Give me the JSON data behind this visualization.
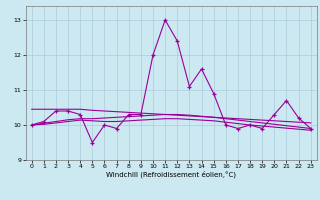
{
  "x": [
    0,
    1,
    2,
    3,
    4,
    5,
    6,
    7,
    8,
    9,
    10,
    11,
    12,
    13,
    14,
    15,
    16,
    17,
    18,
    19,
    20,
    21,
    22,
    23
  ],
  "y_main": [
    10.0,
    10.1,
    10.4,
    10.4,
    10.3,
    9.5,
    10.0,
    9.9,
    10.3,
    10.3,
    12.0,
    13.0,
    12.4,
    11.1,
    11.6,
    10.9,
    10.0,
    9.9,
    10.0,
    9.9,
    10.3,
    10.7,
    10.2,
    9.9
  ],
  "y_line1": [
    10.45,
    10.45,
    10.45,
    10.45,
    10.45,
    10.42,
    10.4,
    10.38,
    10.36,
    10.34,
    10.32,
    10.3,
    10.28,
    10.26,
    10.24,
    10.22,
    10.2,
    10.18,
    10.16,
    10.14,
    10.12,
    10.1,
    10.08,
    10.06
  ],
  "y_line2": [
    10.0,
    10.05,
    10.1,
    10.15,
    10.18,
    10.18,
    10.2,
    10.22,
    10.24,
    10.26,
    10.28,
    10.3,
    10.3,
    10.28,
    10.25,
    10.22,
    10.18,
    10.14,
    10.1,
    10.06,
    10.02,
    9.98,
    9.94,
    9.9
  ],
  "y_line3": [
    10.0,
    10.02,
    10.06,
    10.1,
    10.14,
    10.12,
    10.1,
    10.1,
    10.12,
    10.14,
    10.16,
    10.18,
    10.18,
    10.16,
    10.14,
    10.12,
    10.08,
    10.04,
    10.0,
    9.97,
    9.94,
    9.91,
    9.88,
    9.85
  ],
  "line_color": "#990099",
  "bg_color": "#cce8f0",
  "grid_color": "#aaccdd",
  "xlabel": "Windchill (Refroidissement éolien,°C)",
  "ylim": [
    9.0,
    13.4
  ],
  "xlim": [
    -0.5,
    23.5
  ],
  "yticks": [
    9,
    10,
    11,
    12,
    13
  ],
  "xticks": [
    0,
    1,
    2,
    3,
    4,
    5,
    6,
    7,
    8,
    9,
    10,
    11,
    12,
    13,
    14,
    15,
    16,
    17,
    18,
    19,
    20,
    21,
    22,
    23
  ]
}
